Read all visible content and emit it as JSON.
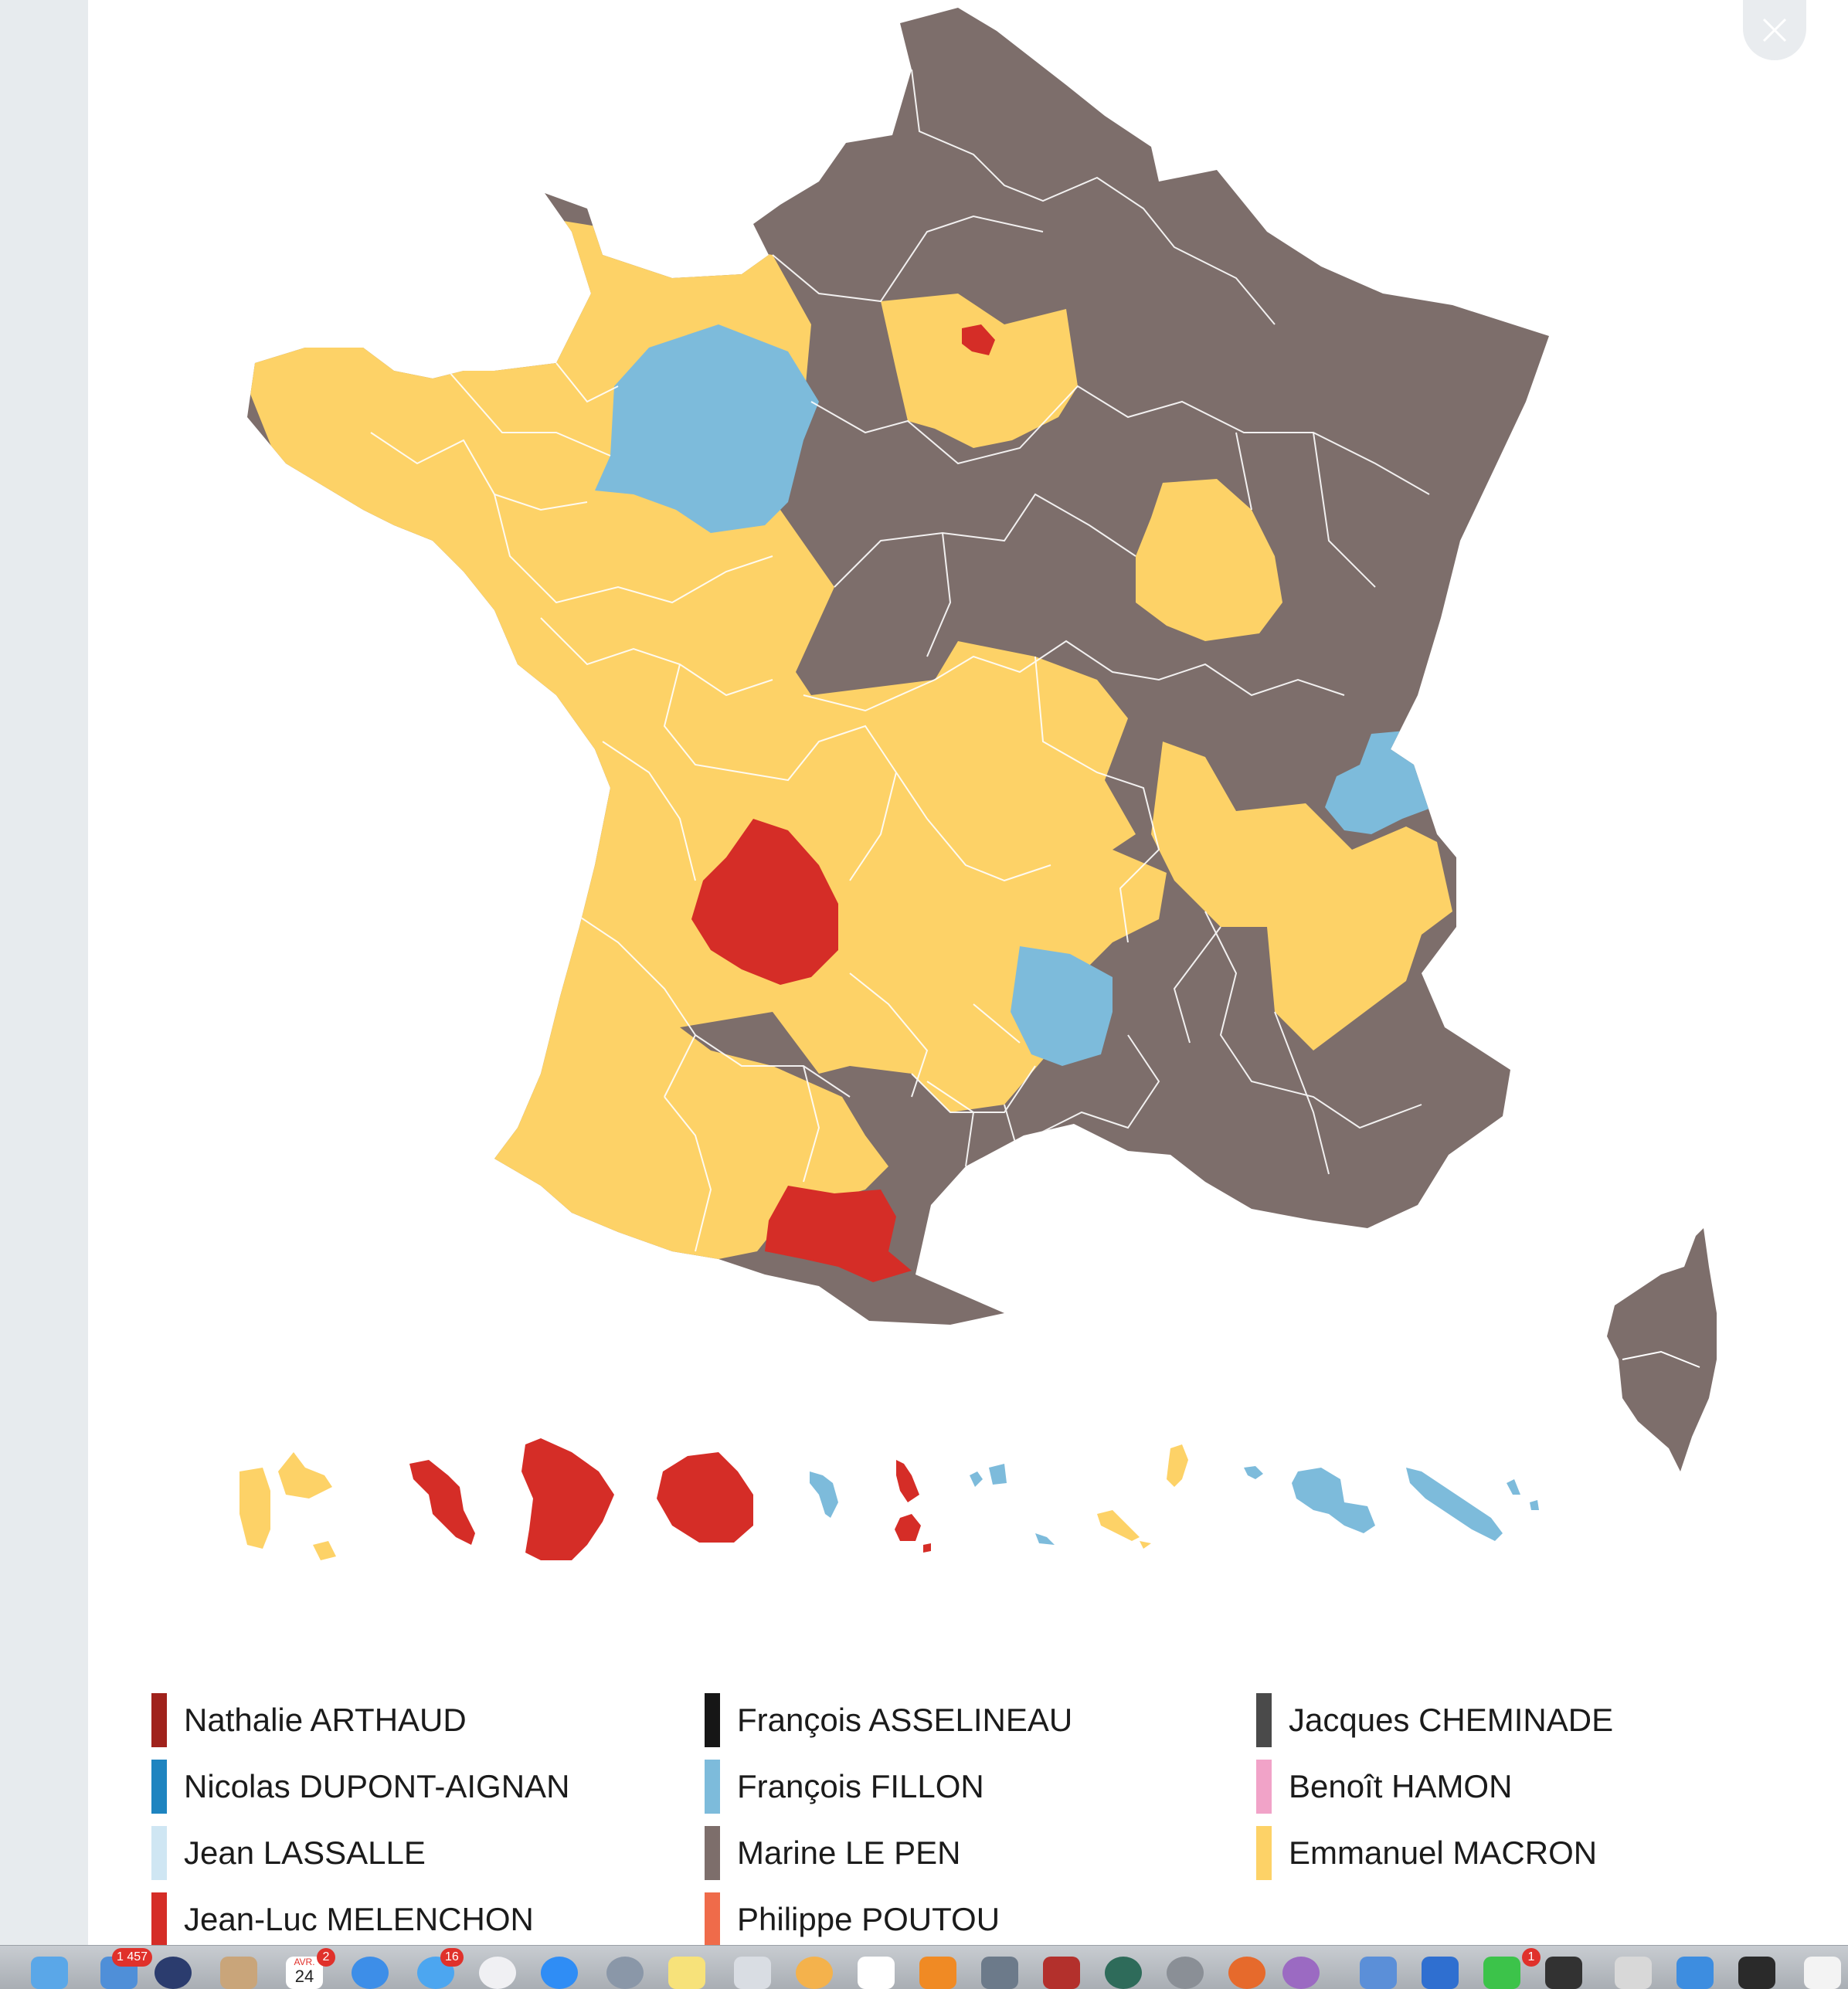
{
  "colors": {
    "macron": "#fdd267",
    "le_pen": "#7d6e6b",
    "fillon": "#7dbbdb",
    "melenchon": "#d52d27",
    "border": "#ffffff",
    "background": "#ffffff"
  },
  "close_icon": "close-icon",
  "legend": {
    "items": [
      {
        "name": "Nathalie ARTHAUD",
        "color": "#a0221c"
      },
      {
        "name": "François ASSELINEAU",
        "color": "#161616"
      },
      {
        "name": "Jacques CHEMINADE",
        "color": "#4a4a4a"
      },
      {
        "name": "Nicolas DUPONT-AIGNAN",
        "color": "#1e84c0"
      },
      {
        "name": "François FILLON",
        "color": "#7dbbdb"
      },
      {
        "name": "Benoît HAMON",
        "color": "#f1a3c8"
      },
      {
        "name": "Jean LASSALLE",
        "color": "#cfe6f3"
      },
      {
        "name": "Marine LE PEN",
        "color": "#7d6e6b"
      },
      {
        "name": "Emmanuel MACRON",
        "color": "#fdd267"
      },
      {
        "name": "Jean-Luc MELENCHON",
        "color": "#d52d27"
      },
      {
        "name": "Philippe POUTOU",
        "color": "#ef6b4a"
      }
    ]
  },
  "dock": {
    "badges": [
      "1 457",
      "2",
      "16",
      "1"
    ],
    "calendar_month": "AVR.",
    "calendar_day": "24"
  }
}
